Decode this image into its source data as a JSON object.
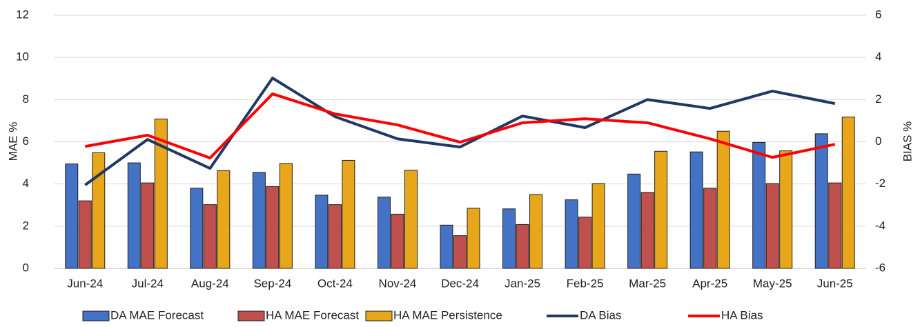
{
  "chart_data": {
    "type": "bar",
    "categories": [
      "Jun-24",
      "Jul-24",
      "Aug-24",
      "Sep-24",
      "Oct-24",
      "Nov-24",
      "Dec-24",
      "Jan-25",
      "Feb-25",
      "Mar-25",
      "Apr-25",
      "May-25",
      "Jun-25"
    ],
    "y_label": "MAE %",
    "y2_label": "BIAS %",
    "ylim": [
      0,
      12
    ],
    "yticks": [
      0,
      2,
      4,
      6,
      8,
      10,
      12
    ],
    "y2lim": [
      -6,
      6
    ],
    "y2ticks": [
      -6,
      -4,
      -2,
      0,
      2,
      4,
      6
    ],
    "grid": true,
    "legend": "bottom",
    "series": [
      {
        "name": "DA MAE Forecast",
        "type": "bar",
        "color": "#4472c4",
        "values": [
          4.95,
          5.0,
          3.8,
          4.55,
          3.47,
          3.38,
          2.05,
          2.82,
          3.25,
          4.47,
          5.52,
          5.97,
          6.38
        ]
      },
      {
        "name": "HA MAE Forecast",
        "type": "bar",
        "color": "#c0504d",
        "values": [
          3.2,
          4.05,
          3.02,
          3.88,
          3.02,
          2.57,
          1.55,
          2.08,
          2.43,
          3.6,
          3.8,
          4.02,
          4.05
        ]
      },
      {
        "name": "HA MAE Persistence",
        "type": "bar",
        "color": "#e8a61a",
        "values": [
          5.48,
          7.08,
          4.63,
          4.97,
          5.12,
          4.65,
          2.85,
          3.5,
          4.02,
          5.55,
          6.5,
          5.57,
          7.17
        ]
      },
      {
        "name": "DA Bias",
        "type": "line",
        "axis": "y2",
        "color": "#203864",
        "values": [
          -2.05,
          0.11,
          -1.26,
          3.02,
          1.19,
          0.14,
          -0.25,
          1.22,
          0.67,
          2.0,
          1.58,
          2.4,
          1.81
        ]
      },
      {
        "name": "HA Bias",
        "type": "line",
        "axis": "y2",
        "color": "#ff0000",
        "values": [
          -0.22,
          0.31,
          -0.77,
          2.27,
          1.32,
          0.8,
          -0.02,
          0.9,
          1.09,
          0.9,
          0.14,
          -0.74,
          -0.12
        ]
      }
    ]
  }
}
